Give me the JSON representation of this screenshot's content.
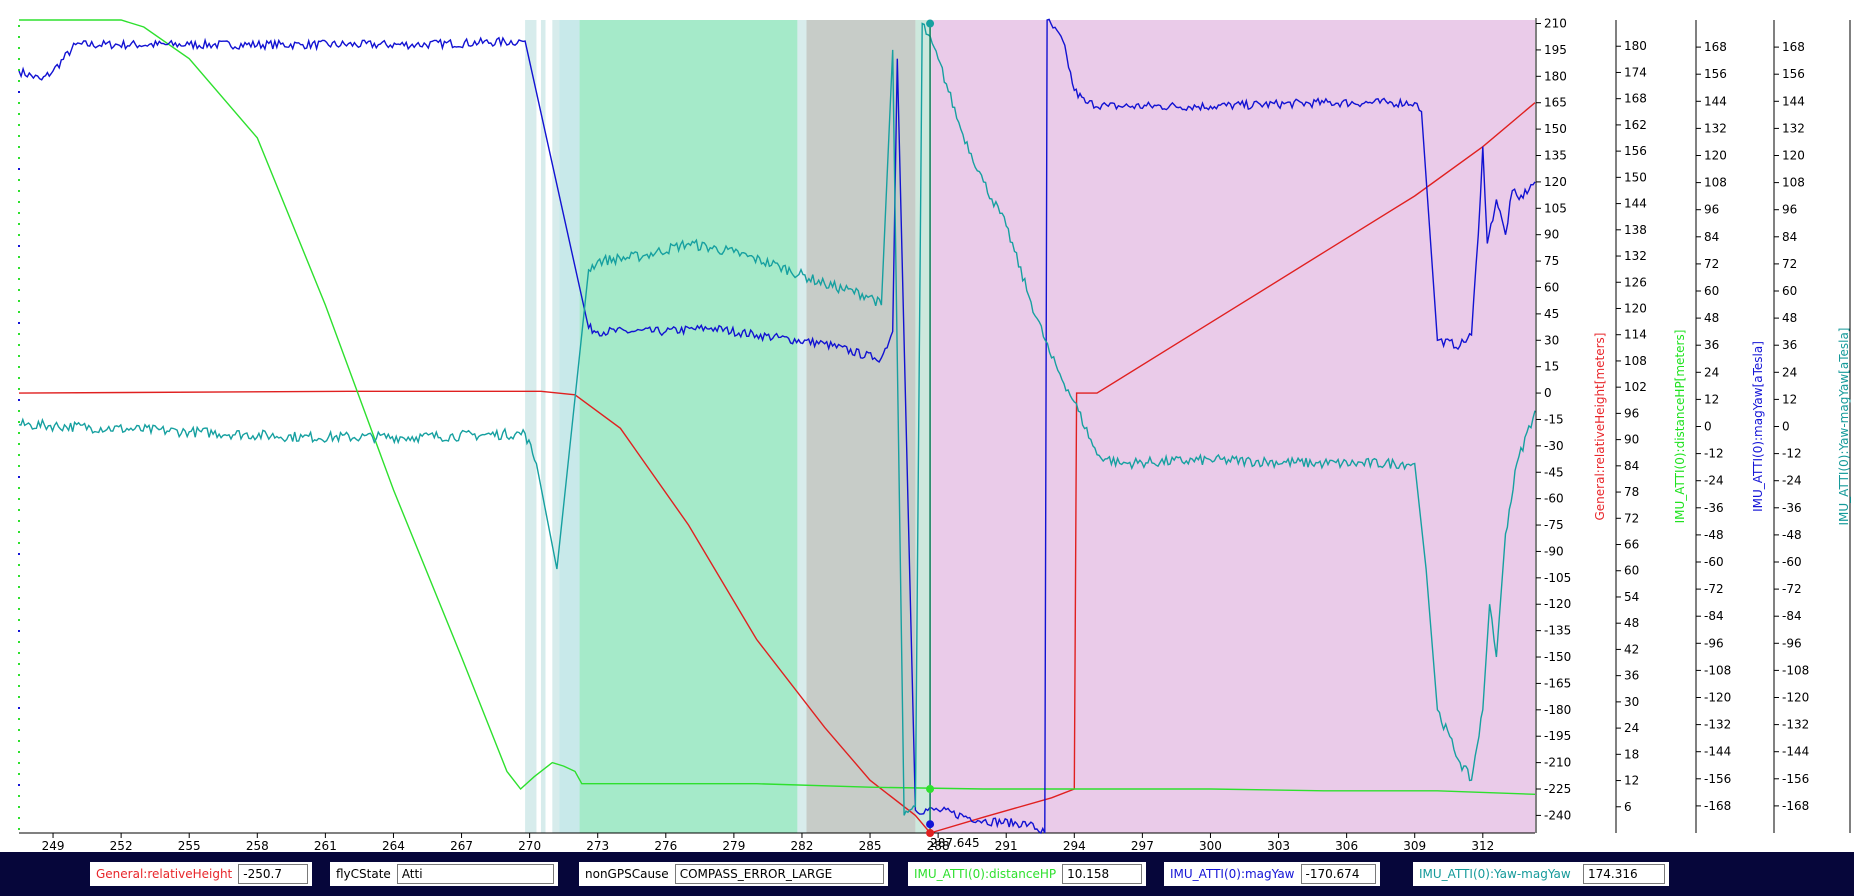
{
  "chart_data": {
    "type": "line",
    "x_ticks": [
      249,
      252,
      255,
      258,
      261,
      264,
      267,
      270,
      273,
      276,
      279,
      282,
      285,
      288,
      291,
      294,
      297,
      300,
      303,
      306,
      309,
      312
    ],
    "xlim": [
      247.5,
      314.3
    ],
    "cursor": {
      "x": 287.645,
      "label": "287.645"
    },
    "shaded_regions": [
      {
        "from": 269.8,
        "to": 270.3,
        "color": "#d7ecec"
      },
      {
        "from": 270.5,
        "to": 270.7,
        "color": "#d7ecec"
      },
      {
        "from": 271.0,
        "to": 271.3,
        "color": "#d7ecec"
      },
      {
        "from": 271.3,
        "to": 272.2,
        "color": "#c8e9ea"
      },
      {
        "from": 272.2,
        "to": 281.8,
        "color": "#a5eac9"
      },
      {
        "from": 281.8,
        "to": 282.2,
        "color": "#d8ecec"
      },
      {
        "from": 282.2,
        "to": 287.0,
        "color": "#c7ccc8"
      },
      {
        "from": 287.0,
        "to": 287.7,
        "color": "#cde8dd"
      },
      {
        "from": 287.7,
        "to": 314.3,
        "color": "#eacbe9"
      }
    ],
    "axes": [
      {
        "name": "main",
        "label": "",
        "color": "#000000",
        "ylim": [
          -250,
          212
        ],
        "ticks": [
          210,
          195,
          180,
          165,
          150,
          135,
          120,
          105,
          90,
          75,
          60,
          45,
          30,
          15,
          0,
          -15,
          -30,
          -45,
          -60,
          -75,
          -90,
          -105,
          -120,
          -135,
          -150,
          -165,
          -180,
          -195,
          -210,
          -225,
          -240
        ]
      },
      {
        "name": "relativeHeight",
        "label": "General:relativeHeight[meters]",
        "color": "#e8262a",
        "ylim": [
          0,
          186
        ],
        "ticks": [
          180,
          174,
          168,
          162,
          156,
          150,
          144,
          138,
          132,
          126,
          120,
          114,
          108,
          102,
          96,
          90,
          84,
          78,
          72,
          66,
          60,
          54,
          48,
          42,
          36,
          30,
          24,
          18,
          12,
          6
        ]
      },
      {
        "name": "distanceHP",
        "label": "IMU_ATTI(0):distanceHP[meters]",
        "color": "#1ee21e",
        "ylim": [
          -180,
          180
        ],
        "ticks": [
          168,
          156,
          144,
          132,
          120,
          108,
          96,
          84,
          72,
          60,
          48,
          36,
          24,
          12,
          0,
          -12,
          -24,
          -36,
          -48,
          -60,
          -72,
          -84,
          -96,
          -108,
          -120,
          -132,
          -144,
          -156,
          -168
        ]
      },
      {
        "name": "magYaw",
        "label": "IMU_ATTI(0):magYaw[aTesla]",
        "color": "#1414d6",
        "ylim": [
          -180,
          180
        ],
        "ticks": [
          168,
          156,
          144,
          132,
          120,
          108,
          96,
          84,
          72,
          60,
          48,
          36,
          24,
          12,
          0,
          -12,
          -24,
          -36,
          -48,
          -60,
          -72,
          -84,
          -96,
          -108,
          -120,
          -132,
          -144,
          -156,
          -168
        ]
      },
      {
        "name": "yawMinusMagYaw",
        "label": "IMU_ATTI(0):Yaw-magYaw[aTesla]",
        "color": "#159a9a",
        "ylim": [
          -180,
          180
        ],
        "ticks": []
      }
    ],
    "series": [
      {
        "name": "General:relativeHeight",
        "color": "#e02020",
        "axis": "main",
        "x": [
          247.5,
          262,
          270.5,
          272,
          274,
          277,
          280,
          283,
          285,
          287,
          287.65,
          290,
          293,
          294,
          294.1,
          295,
          300,
          305,
          309,
          312,
          314.3
        ],
        "y": [
          0,
          1,
          1,
          -1,
          -20,
          -75,
          -140,
          -190,
          -220,
          -240,
          -250,
          -241,
          -230,
          -225,
          0,
          0,
          40,
          80,
          112,
          140,
          165
        ]
      },
      {
        "name": "IMU_ATTI(0):distanceHP",
        "color": "#2ee02e",
        "axis": "main",
        "x": [
          247.5,
          252,
          253,
          255,
          258,
          261,
          264,
          267,
          269,
          269.6,
          270.2,
          271,
          271.5,
          272,
          272.3,
          275,
          280,
          285,
          290,
          300,
          305,
          310,
          314.3
        ],
        "y": [
          212,
          212,
          208,
          190,
          145,
          50,
          -55,
          -150,
          -215,
          -225,
          -218,
          -210,
          -212,
          -215,
          -222,
          -222,
          -222,
          -224,
          -225,
          -225,
          -226,
          -226,
          -228
        ]
      },
      {
        "name": "IMU_ATTI(0):magYaw",
        "color": "#1212d2",
        "axis": "main",
        "noise": 2.5,
        "x": [
          247.5,
          248.5,
          249,
          250,
          255,
          260,
          265,
          269.8,
          272.6,
          273,
          276,
          278,
          280,
          283,
          285.2,
          285.5,
          286.0,
          286.2,
          287,
          288,
          290,
          292,
          292.7,
          292.8,
          293.5,
          294,
          294.5,
          295.5,
          300,
          305,
          308,
          309,
          309.3,
          310,
          311,
          311.5,
          311.8,
          312,
          312.2,
          312.6,
          313,
          313.3,
          313.6,
          314.3
        ],
        "y": [
          183,
          178,
          183,
          198,
          198,
          198,
          198,
          200,
          37,
          35,
          35,
          37,
          33,
          28,
          20,
          20,
          35,
          190,
          -237,
          -237,
          -243,
          -245,
          -250,
          212,
          200,
          172,
          165,
          163,
          163,
          165,
          165,
          165,
          160,
          30,
          27,
          33,
          90,
          140,
          85,
          110,
          90,
          115,
          110,
          120
        ]
      },
      {
        "name": "IMU_ATTI(0):Yaw-magYaw",
        "color": "#16a0a0",
        "axis": "main",
        "noise": 3.0,
        "x": [
          247.5,
          248,
          255,
          260,
          265,
          269.8,
          270.3,
          271.2,
          272.6,
          273,
          275,
          277,
          279,
          281,
          283,
          285,
          285.5,
          286.0,
          286.5,
          287,
          287.3,
          288,
          289,
          290,
          291,
          292,
          293,
          294,
          295,
          296,
          300,
          305,
          309,
          309.5,
          310,
          311,
          311.5,
          312,
          312.3,
          312.6,
          313,
          313.5,
          314.3
        ],
        "y": [
          -18,
          -18,
          -22,
          -25,
          -25,
          -23,
          -40,
          -100,
          70,
          75,
          78,
          85,
          80,
          72,
          62,
          55,
          50,
          195,
          -240,
          -235,
          210,
          190,
          150,
          120,
          95,
          55,
          20,
          -5,
          -35,
          -40,
          -38,
          -40,
          -40,
          -100,
          -180,
          -210,
          -220,
          -180,
          -120,
          -150,
          -80,
          -40,
          -10
        ]
      }
    ]
  },
  "statusbar": {
    "fields": [
      {
        "label": "General:relativeHeight",
        "value": "-250.7",
        "color": "#e8262a"
      },
      {
        "label": "flyCState",
        "value": "Atti",
        "color": "#000000"
      },
      {
        "label": "nonGPSCause",
        "value": "COMPASS_ERROR_LARGE",
        "color": "#000000"
      },
      {
        "label": "IMU_ATTI(0):distanceHP",
        "value": "10.158",
        "color": "#2ee02e"
      },
      {
        "label": "IMU_ATTI(0):magYaw",
        "value": "-170.674",
        "color": "#1414d6"
      },
      {
        "label": "IMU_ATTI(0):Yaw-magYaw",
        "value": "174.316",
        "color": "#159a9a"
      }
    ]
  }
}
